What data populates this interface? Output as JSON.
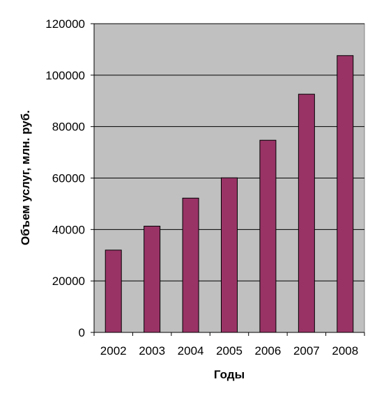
{
  "chart_data": {
    "type": "bar",
    "categories": [
      "2002",
      "2003",
      "2004",
      "2005",
      "2006",
      "2007",
      "2008"
    ],
    "series": [
      {
        "values": [
          32000,
          41300,
          52200,
          60100,
          74700,
          92600,
          107600
        ]
      }
    ],
    "xlabel": "Годы",
    "ylabel": "Объем услуг, млн. руб.",
    "ylim": [
      0,
      120000
    ],
    "yticks": [
      "0",
      "20000",
      "40000",
      "60000",
      "80000",
      "100000",
      "120000"
    ],
    "grid": true,
    "legend": "none",
    "colors": {
      "bar": "#993366",
      "plot_background": "#c0c0c0",
      "gridline": "#000000"
    }
  }
}
